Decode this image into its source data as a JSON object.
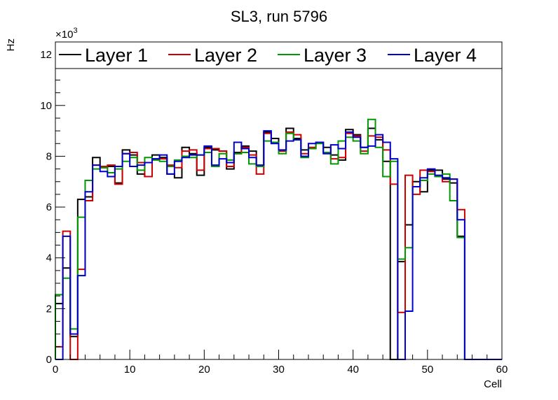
{
  "chart_data": {
    "type": "histogram-step",
    "title": "SL3, run 5796",
    "xlabel": "Cell",
    "ylabel": "Hz",
    "y_multiplier": "×10",
    "y_multiplier_exp": "3",
    "xlim": [
      0,
      60
    ],
    "ylim": [
      0,
      12.5
    ],
    "x_ticks": [
      0,
      10,
      20,
      30,
      40,
      50,
      60
    ],
    "y_ticks": [
      0,
      2,
      4,
      6,
      8,
      10,
      12
    ],
    "legend_position": "top",
    "series": [
      {
        "name": "Layer 1",
        "color": "#000000",
        "values": [
          2.2,
          3.6,
          0.9,
          6.3,
          6.4,
          7.95,
          7.55,
          7.6,
          6.95,
          8.25,
          8.05,
          7.3,
          7.2,
          8.05,
          7.95,
          7.3,
          7.15,
          8.35,
          8.1,
          7.25,
          8.35,
          8.25,
          8.2,
          7.5,
          8.15,
          8.4,
          8.2,
          7.6,
          8.95,
          8.7,
          8.2,
          9.1,
          8.7,
          8.25,
          8.3,
          8.55,
          8.35,
          8.05,
          7.85,
          9.05,
          8.85,
          8.35,
          9.1,
          8.65,
          7.8,
          0.0,
          3.85,
          5.3,
          7.0,
          6.6,
          7.45,
          7.45,
          7.1,
          6.95,
          4.85,
          0.0,
          0,
          0,
          0,
          0
        ]
      },
      {
        "name": "Layer 2",
        "color": "#cc0000",
        "values": [
          0.5,
          5.05,
          0.0,
          3.55,
          6.25,
          7.65,
          7.6,
          7.65,
          6.9,
          8.1,
          8.15,
          7.75,
          7.2,
          7.9,
          7.9,
          7.65,
          7.55,
          8.2,
          8.25,
          7.45,
          8.3,
          8.3,
          8.2,
          7.6,
          8.1,
          8.35,
          8.05,
          7.3,
          8.9,
          8.55,
          8.2,
          8.95,
          8.85,
          8.1,
          8.35,
          8.55,
          8.15,
          7.9,
          7.95,
          8.9,
          8.8,
          8.2,
          8.8,
          8.75,
          8.25,
          6.9,
          1.85,
          7.25,
          6.5,
          7.45,
          7.4,
          7.2,
          7.0,
          7.1,
          5.9,
          0.0,
          0,
          0,
          0,
          0
        ]
      },
      {
        "name": "Layer 3",
        "color": "#009900",
        "values": [
          2.55,
          3.2,
          1.2,
          5.6,
          7.05,
          7.5,
          7.55,
          7.35,
          7.5,
          7.8,
          7.95,
          7.45,
          7.95,
          7.85,
          7.8,
          7.6,
          7.85,
          8.0,
          7.95,
          8.05,
          8.15,
          7.6,
          8.1,
          7.85,
          8.1,
          8.15,
          7.7,
          7.6,
          8.6,
          8.55,
          8.1,
          8.9,
          8.65,
          7.95,
          8.3,
          8.5,
          8.15,
          7.7,
          8.6,
          8.75,
          8.6,
          8.1,
          9.45,
          8.35,
          7.2,
          7.8,
          3.95,
          4.4,
          6.8,
          7.05,
          7.3,
          7.2,
          7.3,
          6.25,
          4.8,
          0.0,
          0,
          0,
          0,
          0
        ]
      },
      {
        "name": "Layer 4",
        "color": "#0000cc",
        "values": [
          0.0,
          4.85,
          1.0,
          3.3,
          6.6,
          7.65,
          7.4,
          7.2,
          7.6,
          8.1,
          7.6,
          7.65,
          7.75,
          7.9,
          8.05,
          7.3,
          7.8,
          7.95,
          8.05,
          8.05,
          8.4,
          7.65,
          7.9,
          7.75,
          8.55,
          8.3,
          7.95,
          7.65,
          9.0,
          8.5,
          8.25,
          8.6,
          8.65,
          8.0,
          8.5,
          8.55,
          8.1,
          8.45,
          8.3,
          8.95,
          8.75,
          8.35,
          8.4,
          8.85,
          8.55,
          7.9,
          0.0,
          1.9,
          6.8,
          7.15,
          7.5,
          7.25,
          7.15,
          7.1,
          5.5,
          0.0,
          0,
          0,
          0,
          0
        ]
      }
    ]
  }
}
